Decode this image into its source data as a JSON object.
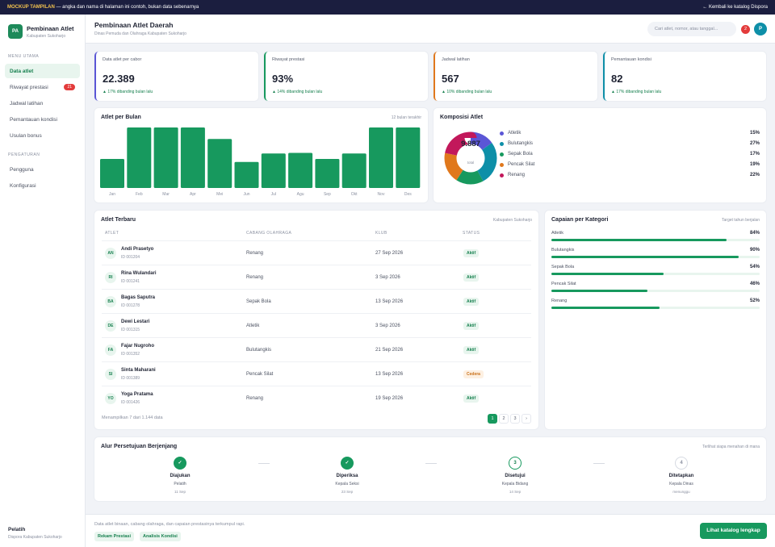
{
  "topbar": {
    "tag": "MOCKUP TAMPILAN",
    "note": "— angka dan nama di halaman ini contoh, bukan data sebenarnya",
    "back": "← Kembali ke katalog Dispora"
  },
  "brand": {
    "logo": "PA",
    "name": "Pembinaan Atlet",
    "sub": "Kabupaten Sukoharjo"
  },
  "sidebar": {
    "main_title": "MENU UTAMA",
    "items": [
      {
        "label": "Data atlet"
      },
      {
        "label": "Riwayat prestasi",
        "badge": "21"
      },
      {
        "label": "Jadwal latihan"
      },
      {
        "label": "Pemantauan kondisi"
      },
      {
        "label": "Usulan bonus"
      }
    ],
    "settings_title": "PENGATURAN",
    "settings": [
      {
        "label": "Pengguna"
      },
      {
        "label": "Konfigurasi"
      }
    ],
    "user": {
      "name": "Pelatih",
      "org": "Dispora Kabupaten Sukoharjo"
    }
  },
  "header": {
    "title": "Pembinaan Atlet Daerah",
    "subtitle": "Dinas Pemuda dan Olahraga Kabupaten Sukoharjo",
    "search_placeholder": "Cari atlet, nomor, atau tanggal...",
    "notif_count": "2",
    "avatar": "P"
  },
  "kpis": [
    {
      "label": "Data atlet per cabor",
      "value": "22.389",
      "delta": "▲ 17% dibanding bulan lalu",
      "color": "#5b56d6"
    },
    {
      "label": "Riwayat prestasi",
      "value": "93%",
      "delta": "▲ 14% dibanding bulan lalu",
      "color": "#17995e"
    },
    {
      "label": "Jadwal latihan",
      "value": "567",
      "delta": "▲ 10% dibanding bulan lalu",
      "color": "#e0781c"
    },
    {
      "label": "Pemantauan kondisi",
      "value": "82",
      "delta": "▲ 17% dibanding bulan lalu",
      "color": "#0e8fa8"
    }
  ],
  "bar_panel": {
    "title": "Atlet per Bulan",
    "subtitle": "12 bulan terakhir"
  },
  "donut_panel": {
    "title": "Komposisi Atlet",
    "center_value": "9.887",
    "center_label": "total"
  },
  "chart_data": [
    {
      "type": "bar",
      "title": "Atlet per Bulan",
      "categories": [
        "Jan",
        "Feb",
        "Mar",
        "Apr",
        "Mei",
        "Jun",
        "Jul",
        "Agu",
        "Sep",
        "Okt",
        "Nov",
        "Des"
      ],
      "values": [
        48,
        100,
        100,
        100,
        81,
        43,
        57,
        58,
        48,
        57,
        100,
        100
      ],
      "ylim": [
        0,
        100
      ],
      "grid": false,
      "color": "#17995e"
    },
    {
      "type": "pie",
      "title": "Komposisi Atlet",
      "labels": [
        "Atletik",
        "Bulutangkis",
        "Sepak Bola",
        "Pencak Silat",
        "Renang"
      ],
      "values": [
        15,
        27,
        17,
        19,
        22
      ],
      "display": [
        "15%",
        "27%",
        "17%",
        "19%",
        "22%"
      ],
      "colors": [
        "#5b56d6",
        "#0e8fa8",
        "#17995e",
        "#e0781c",
        "#c2185b"
      ]
    }
  ],
  "table": {
    "title": "Atlet Terbaru",
    "subtitle": "Kabupaten Sukoharjo",
    "headers": [
      "ATLET",
      "CABANG OLAHRAGA",
      "KLUB",
      "STATUS"
    ],
    "rows": [
      {
        "initials": "AN",
        "name": "Andi Prasetyo",
        "id": "ID 001204",
        "sport": "Renang",
        "date": "27 Sep 2026",
        "status": "Aktif"
      },
      {
        "initials": "RI",
        "name": "Rina Wulandari",
        "id": "ID 001241",
        "sport": "Renang",
        "date": "3 Sep 2026",
        "status": "Aktif"
      },
      {
        "initials": "BA",
        "name": "Bagas Saputra",
        "id": "ID 001278",
        "sport": "Sepak Bola",
        "date": "13 Sep 2026",
        "status": "Aktif"
      },
      {
        "initials": "DE",
        "name": "Dewi Lestari",
        "id": "ID 001315",
        "sport": "Atletik",
        "date": "3 Sep 2026",
        "status": "Aktif"
      },
      {
        "initials": "FA",
        "name": "Fajar Nugroho",
        "id": "ID 001352",
        "sport": "Bulutangkis",
        "date": "21 Sep 2026",
        "status": "Aktif"
      },
      {
        "initials": "SI",
        "name": "Sinta Maharani",
        "id": "ID 001389",
        "sport": "Pencak Silat",
        "date": "13 Sep 2026",
        "status": "Cedera"
      },
      {
        "initials": "YO",
        "name": "Yoga Pratama",
        "id": "ID 001426",
        "sport": "Renang",
        "date": "19 Sep 2026",
        "status": "Aktif"
      }
    ],
    "footer": "Menampilkan 7 dari 1.144 data",
    "pages": [
      "1",
      "2",
      "3",
      "›"
    ]
  },
  "categories": {
    "title": "Capaian per Kategori",
    "subtitle": "Target tahun berjalan",
    "items": [
      {
        "label": "Atletik",
        "pct": "84%",
        "value": 84
      },
      {
        "label": "Bulutangkis",
        "pct": "90%",
        "value": 90
      },
      {
        "label": "Sepak Bola",
        "pct": "54%",
        "value": 54
      },
      {
        "label": "Pencak Silat",
        "pct": "46%",
        "value": 46
      },
      {
        "label": "Renang",
        "pct": "52%",
        "value": 52
      }
    ]
  },
  "flow": {
    "title": "Alur Persetujuan Berjenjang",
    "subtitle": "Terlihat siapa menahan di mana",
    "steps": [
      {
        "mark": "✓",
        "name": "Diajukan",
        "role": "Pelatih",
        "date": "11 Sep"
      },
      {
        "mark": "✓",
        "name": "Diperiksa",
        "role": "Kepala Seksi",
        "date": "23 Sep"
      },
      {
        "mark": "3",
        "name": "Disetujui",
        "role": "Kepala Bidang",
        "date": "14 Sep"
      },
      {
        "mark": "4",
        "name": "Ditetapkan",
        "role": "Kepala Dinas",
        "date": "menunggu"
      }
    ]
  },
  "footer": {
    "text": "Data atlet binaan, cabang olahraga, dan capaian prestasinya terkumpul rapi.",
    "chips": [
      "Rekam Prestasi",
      "Analisis Kondisi"
    ],
    "cta": "Lihat katalog lengkap"
  }
}
